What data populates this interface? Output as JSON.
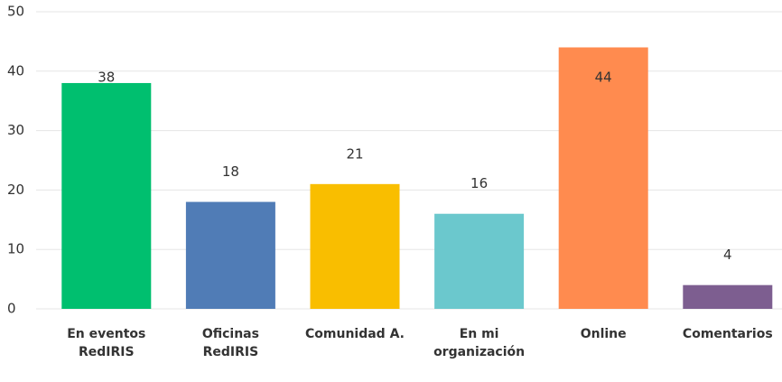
{
  "chart_data": {
    "type": "bar",
    "categories": [
      "En eventos RedIRIS",
      "Oficinas RedIRIS",
      "Comunidad A.",
      "En mi organización",
      "Online",
      "Comentarios"
    ],
    "values": [
      38,
      18,
      21,
      16,
      44,
      4
    ],
    "colors": [
      "#00bf6f",
      "#507cb6",
      "#f9be00",
      "#6bc8cd",
      "#ff8b4f",
      "#7d5e90"
    ],
    "ylim": [
      0,
      50
    ],
    "yticks": [
      0,
      10,
      20,
      30,
      40,
      50
    ],
    "grid": true
  }
}
